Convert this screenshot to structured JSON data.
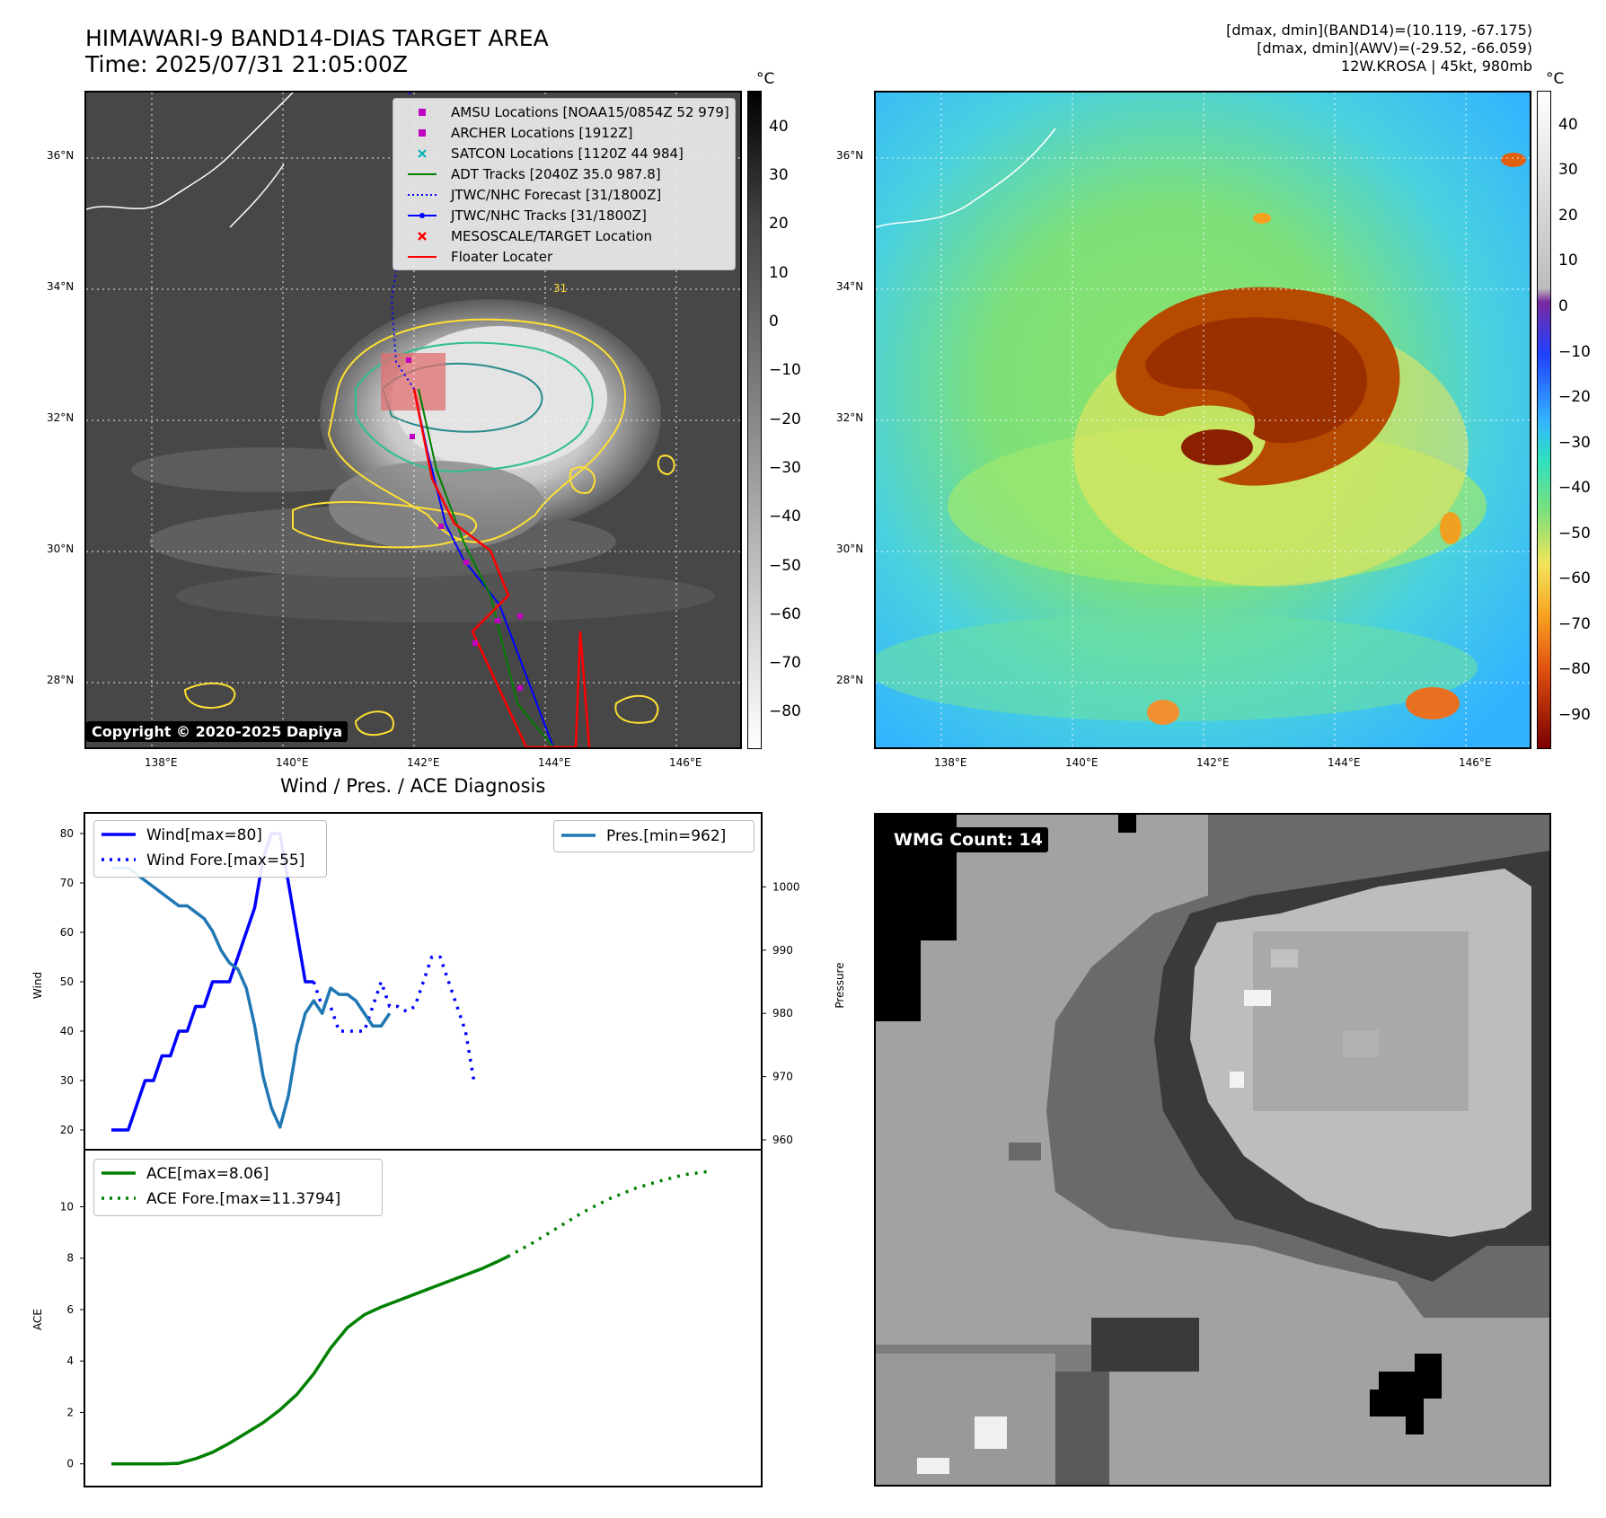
{
  "header": {
    "title_line1": "HIMAWARI-9 BAND14-DIAS TARGET AREA",
    "title_line2": "Time: 2025/07/31 21:05:00Z",
    "right_line1": "[dmax, dmin](BAND14)=(10.119, -67.175)",
    "right_line2": "[dmax, dmin](AWV)=(-29.52, -66.059)",
    "right_line3": "12W.KROSA | 45kt, 980mb"
  },
  "maps": {
    "lat_labels": [
      "36°N",
      "34°N",
      "32°N",
      "30°N",
      "28°N"
    ],
    "lon_labels": [
      "138°E",
      "140°E",
      "142°E",
      "144°E",
      "146°E"
    ],
    "copyright": "Copyright © 2020-2025 Dapiya",
    "contour_label": "31",
    "legend": [
      {
        "label": "AMSU Locations [NOAA15/0854Z 52 979]",
        "color": "#c000c0",
        "symbol": "square"
      },
      {
        "label": "ARCHER Locations [1912Z]",
        "color": "#c000c0",
        "symbol": "square"
      },
      {
        "label": "SATCON Locations [1120Z 44 984]",
        "color": "#00b0b0",
        "symbol": "x"
      },
      {
        "label": "ADT Tracks [2040Z 35.0 987.8]",
        "color": "#008000",
        "symbol": "line"
      },
      {
        "label": "JTWC/NHC Forecast [31/1800Z]",
        "color": "#0000ff",
        "symbol": "dotted"
      },
      {
        "label": "JTWC/NHC Tracks [31/1800Z]",
        "color": "#0000ff",
        "symbol": "line-dot"
      },
      {
        "label": "MESOSCALE/TARGET Location",
        "color": "#ff0000",
        "symbol": "x"
      },
      {
        "label": "Floater Locater",
        "color": "#ff0000",
        "symbol": "line"
      }
    ],
    "colorbar_left": {
      "unit": "°C",
      "ticks": [
        "40",
        "30",
        "20",
        "10",
        "0",
        "−10",
        "−20",
        "−30",
        "−40",
        "−50",
        "−60",
        "−70",
        "−80"
      ]
    },
    "colorbar_right": {
      "unit": "°C",
      "ticks": [
        "40",
        "30",
        "20",
        "10",
        "0",
        "−10",
        "−20",
        "−30",
        "−40",
        "−50",
        "−60",
        "−70",
        "−80",
        "−90"
      ]
    }
  },
  "wmg": {
    "label": "WMG Count: 14"
  },
  "chart_data": [
    {
      "type": "line",
      "title": "Wind / Pres. / ACE Diagnosis",
      "ylabel": "Wind",
      "ylim": [
        18,
        82
      ],
      "yticks": [
        "80",
        "70",
        "60",
        "50",
        "40",
        "30",
        "20"
      ],
      "series": [
        {
          "name": "Wind[max=80]",
          "color": "#0000ff",
          "style": "solid",
          "x": [
            0,
            1,
            2,
            3,
            4,
            5,
            6,
            7,
            8,
            9,
            10,
            11,
            12,
            13,
            14,
            15,
            16,
            17,
            18,
            19,
            20,
            21,
            22,
            23,
            24
          ],
          "values": [
            20,
            20,
            20,
            25,
            30,
            30,
            35,
            35,
            40,
            40,
            45,
            45,
            50,
            50,
            50,
            55,
            60,
            65,
            75,
            80,
            80,
            70,
            60,
            50,
            50
          ]
        },
        {
          "name": "Wind Fore.[max=55]",
          "color": "#0000ff",
          "style": "dotted",
          "x": [
            24,
            25,
            26,
            27,
            28,
            29,
            30,
            31,
            32,
            33,
            34,
            35,
            36,
            37,
            38,
            39,
            40,
            41,
            42,
            43
          ],
          "values": [
            50,
            45,
            45,
            40,
            40,
            40,
            40,
            45,
            50,
            45,
            45,
            44,
            45,
            50,
            55,
            55,
            50,
            45,
            40,
            30
          ]
        }
      ]
    },
    {
      "type": "line",
      "ylabel": "Pressure",
      "ylim": [
        960,
        1010
      ],
      "yticks": [
        "1000",
        "990",
        "980",
        "970",
        "960"
      ],
      "series": [
        {
          "name": "Pres.[min=962]",
          "color": "#1f77b4",
          "style": "solid",
          "x": [
            0,
            2,
            3,
            4,
            5,
            6,
            7,
            8,
            9,
            10,
            11,
            12,
            13,
            14,
            15,
            16,
            17,
            18,
            19,
            20,
            21,
            22,
            23,
            24,
            25,
            26,
            27,
            28,
            29,
            30,
            31,
            32,
            33
          ],
          "values": [
            1003,
            1003,
            1002,
            1001,
            1000,
            999,
            998,
            997,
            997,
            996,
            995,
            993,
            990,
            988,
            987,
            984,
            978,
            970,
            965,
            962,
            967,
            975,
            980,
            982,
            980,
            984,
            983,
            983,
            982,
            980,
            978,
            978,
            980
          ]
        }
      ]
    },
    {
      "type": "line",
      "ylabel": "ACE",
      "ylim": [
        -0.5,
        11.8
      ],
      "yticks": [
        "10",
        "8",
        "6",
        "4",
        "2",
        "0"
      ],
      "series": [
        {
          "name": "ACE[max=8.06]",
          "color": "#008000",
          "style": "solid",
          "x": [
            0,
            2,
            4,
            6,
            8,
            10,
            12,
            14,
            16,
            18,
            19,
            20,
            22,
            24,
            26,
            28,
            30,
            32,
            34,
            36,
            38,
            40,
            42,
            44,
            46,
            47
          ],
          "values": [
            0,
            0,
            0,
            0,
            0.02,
            0.2,
            0.45,
            0.8,
            1.2,
            1.6,
            1.85,
            2.1,
            2.7,
            3.5,
            4.5,
            5.3,
            5.8,
            6.1,
            6.35,
            6.6,
            6.85,
            7.1,
            7.35,
            7.6,
            7.9,
            8.06
          ]
        },
        {
          "name": "ACE Fore.[max=11.3794]",
          "color": "#008000",
          "style": "dotted",
          "x": [
            47,
            50,
            53,
            56,
            59,
            62,
            65,
            68,
            71
          ],
          "values": [
            8.06,
            8.6,
            9.2,
            9.8,
            10.3,
            10.7,
            11.0,
            11.25,
            11.38
          ]
        }
      ]
    }
  ]
}
